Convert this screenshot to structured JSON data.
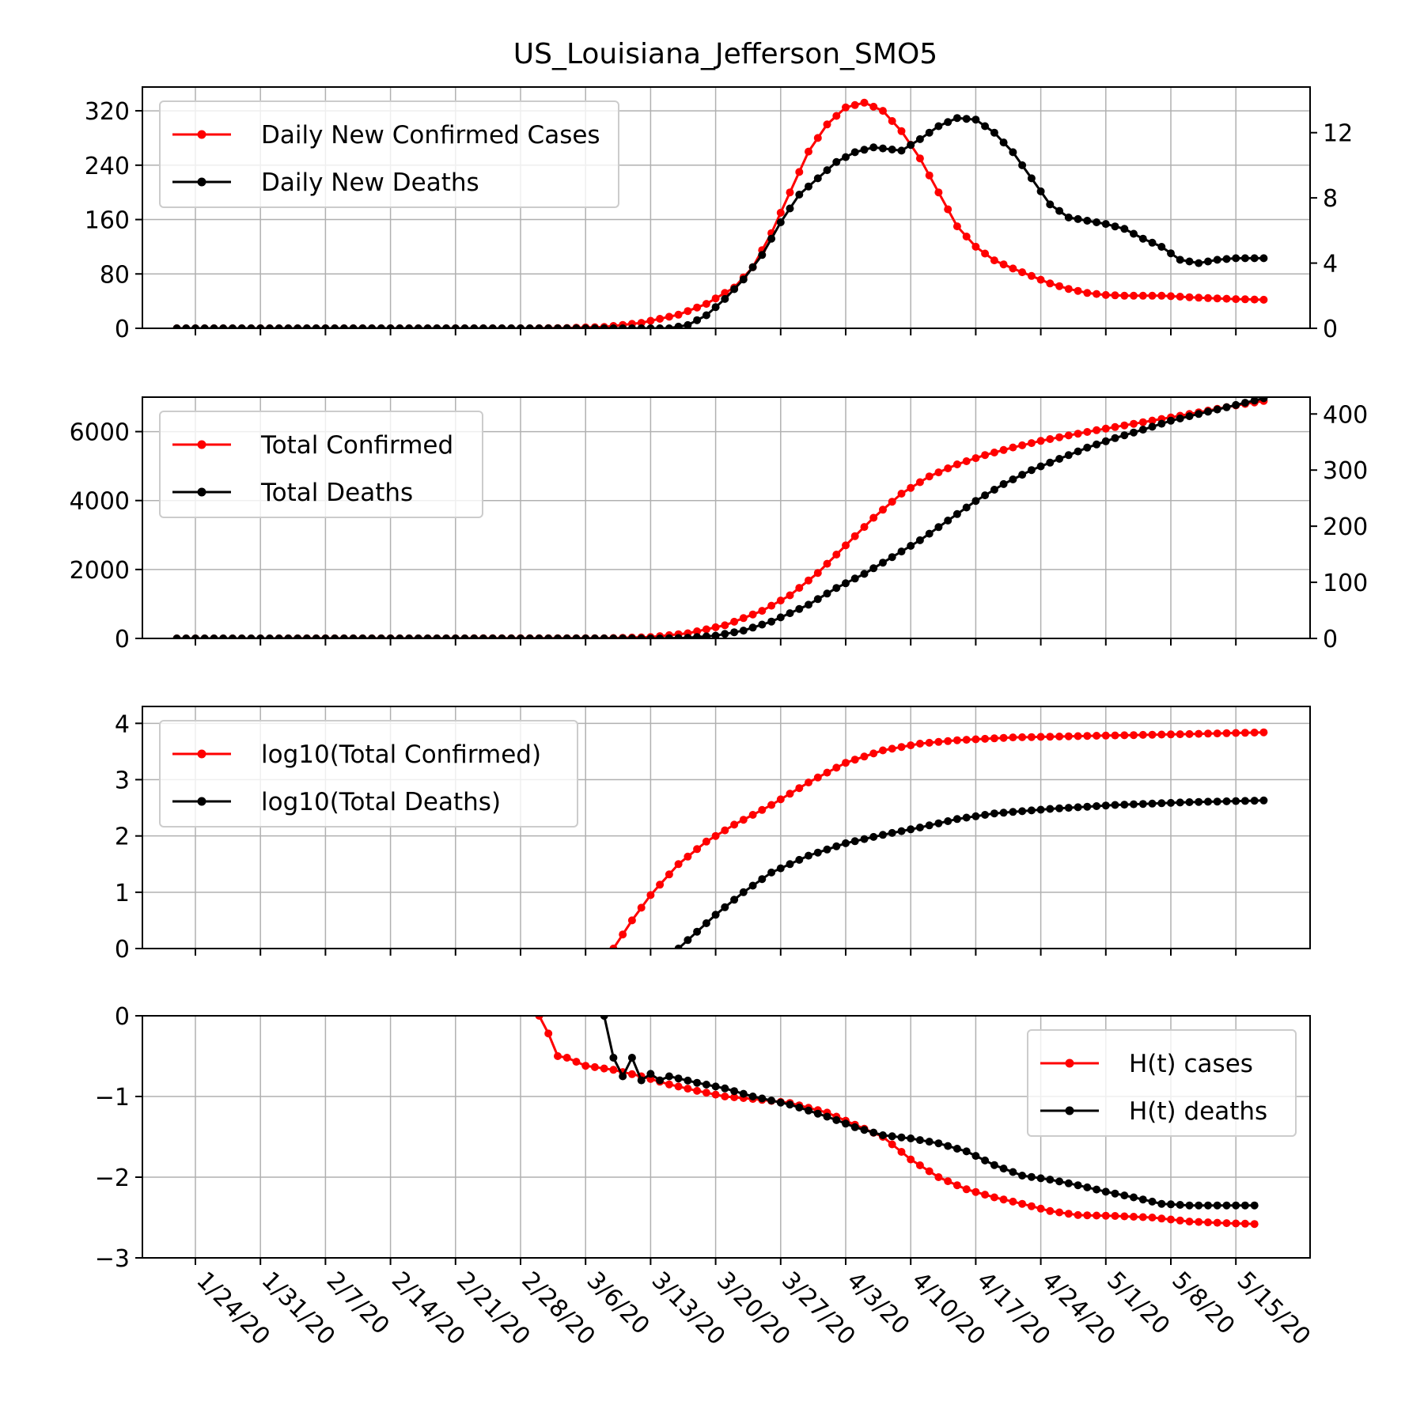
{
  "title": "US_Louisiana_Jefferson_SMO5",
  "colors": {
    "cases": "#ff0000",
    "deaths": "#000000",
    "grid": "#b0b0b0"
  },
  "chart_data": [
    {
      "type": "line",
      "title": "US_Louisiana_Jefferson_SMO5",
      "x_start": "1/22/20",
      "x_end": "5/18/20",
      "x_tick_labels": [
        "1/24/20",
        "1/31/20",
        "2/7/20",
        "2/14/20",
        "2/21/20",
        "2/28/20",
        "3/6/20",
        "3/13/20",
        "3/20/20",
        "3/27/20",
        "4/3/20",
        "4/10/20",
        "4/17/20",
        "4/24/20",
        "5/1/20",
        "5/8/20",
        "5/15/20"
      ],
      "grid": true,
      "legend_position": "upper-left",
      "y_left": {
        "ylim": [
          0,
          355
        ],
        "ticks": [
          0,
          80,
          160,
          240,
          320
        ]
      },
      "y_right": {
        "ylim": [
          0,
          14.8
        ],
        "ticks": [
          0,
          4,
          8,
          12
        ]
      },
      "series": [
        {
          "name": "Daily New Confirmed Cases",
          "axis": "left",
          "color": "#ff0000",
          "points": [
            [
              "1/22/20",
              0
            ],
            [
              "2/29/20",
              0
            ],
            [
              "3/4/20",
              0.5
            ],
            [
              "3/8/20",
              2
            ],
            [
              "3/12/20",
              8
            ],
            [
              "3/16/20",
              20
            ],
            [
              "3/19/20",
              36
            ],
            [
              "3/22/20",
              60
            ],
            [
              "3/24/20",
              90
            ],
            [
              "3/26/20",
              140
            ],
            [
              "3/28/20",
              200
            ],
            [
              "3/30/20",
              260
            ],
            [
              "4/1/20",
              300
            ],
            [
              "4/3/20",
              325
            ],
            [
              "4/5/20",
              332
            ],
            [
              "4/7/20",
              320
            ],
            [
              "4/9/20",
              290
            ],
            [
              "4/11/20",
              250
            ],
            [
              "4/13/20",
              200
            ],
            [
              "4/15/20",
              150
            ],
            [
              "4/17/20",
              120
            ],
            [
              "4/19/20",
              100
            ],
            [
              "4/21/20",
              88
            ],
            [
              "4/23/20",
              77
            ],
            [
              "4/25/20",
              66
            ],
            [
              "4/27/20",
              58
            ],
            [
              "4/29/20",
              52
            ],
            [
              "5/1/20",
              49
            ],
            [
              "5/3/20",
              48
            ],
            [
              "5/7/20",
              48
            ],
            [
              "5/11/20",
              45
            ],
            [
              "5/15/20",
              43
            ],
            [
              "5/18/20",
              42
            ]
          ]
        },
        {
          "name": "Daily New Deaths",
          "axis": "right",
          "color": "#000000",
          "points": [
            [
              "1/22/20",
              0
            ],
            [
              "3/15/20",
              0
            ],
            [
              "3/17/20",
              0.2
            ],
            [
              "3/19/20",
              0.8
            ],
            [
              "3/21/20",
              1.8
            ],
            [
              "3/23/20",
              3
            ],
            [
              "3/25/20",
              4.5
            ],
            [
              "3/27/20",
              6.5
            ],
            [
              "3/29/20",
              8.2
            ],
            [
              "3/31/20",
              9.2
            ],
            [
              "4/2/20",
              10.2
            ],
            [
              "4/4/20",
              10.8
            ],
            [
              "4/6/20",
              11.1
            ],
            [
              "4/9/20",
              10.9
            ],
            [
              "4/11/20",
              11.6
            ],
            [
              "4/13/20",
              12.4
            ],
            [
              "4/15/20",
              12.9
            ],
            [
              "4/17/20",
              12.8
            ],
            [
              "4/19/20",
              12
            ],
            [
              "4/21/20",
              10.8
            ],
            [
              "4/23/20",
              9.2
            ],
            [
              "4/25/20",
              7.6
            ],
            [
              "4/27/20",
              6.8
            ],
            [
              "4/29/20",
              6.6
            ],
            [
              "5/1/20",
              6.4
            ],
            [
              "5/3/20",
              6.1
            ],
            [
              "5/5/20",
              5.5
            ],
            [
              "5/7/20",
              5
            ],
            [
              "5/9/20",
              4.2
            ],
            [
              "5/11/20",
              4
            ],
            [
              "5/13/20",
              4.2
            ],
            [
              "5/15/20",
              4.3
            ],
            [
              "5/18/20",
              4.3
            ]
          ]
        }
      ]
    },
    {
      "type": "line",
      "x_start": "1/22/20",
      "x_end": "5/18/20",
      "grid": true,
      "legend_position": "upper-left",
      "y_left": {
        "ylim": [
          0,
          7000
        ],
        "ticks": [
          0,
          2000,
          4000,
          6000
        ]
      },
      "y_right": {
        "ylim": [
          0,
          430
        ],
        "ticks": [
          0,
          100,
          200,
          300,
          400
        ]
      },
      "series": [
        {
          "name": "Total Confirmed",
          "axis": "left",
          "color": "#ff0000",
          "points": [
            [
              "1/22/20",
              0
            ],
            [
              "3/8/20",
              5
            ],
            [
              "3/13/20",
              40
            ],
            [
              "3/17/20",
              150
            ],
            [
              "3/21/20",
              380
            ],
            [
              "3/25/20",
              800
            ],
            [
              "3/28/20",
              1250
            ],
            [
              "3/31/20",
              1900
            ],
            [
              "4/3/20",
              2700
            ],
            [
              "4/6/20",
              3500
            ],
            [
              "4/9/20",
              4200
            ],
            [
              "4/12/20",
              4700
            ],
            [
              "4/15/20",
              5050
            ],
            [
              "4/18/20",
              5320
            ],
            [
              "4/21/20",
              5540
            ],
            [
              "4/24/20",
              5730
            ],
            [
              "4/27/20",
              5890
            ],
            [
              "4/30/20",
              6040
            ],
            [
              "5/3/20",
              6180
            ],
            [
              "5/6/20",
              6320
            ],
            [
              "5/9/20",
              6460
            ],
            [
              "5/12/20",
              6610
            ],
            [
              "5/15/20",
              6760
            ],
            [
              "5/18/20",
              6890
            ]
          ]
        },
        {
          "name": "Total Deaths",
          "axis": "right",
          "color": "#000000",
          "points": [
            [
              "1/22/20",
              0
            ],
            [
              "3/14/20",
              0
            ],
            [
              "3/17/20",
              1
            ],
            [
              "3/20/20",
              5
            ],
            [
              "3/23/20",
              14
            ],
            [
              "3/26/20",
              30
            ],
            [
              "3/30/20",
              60
            ],
            [
              "4/2/20",
              90
            ],
            [
              "4/5/20",
              115
            ],
            [
              "4/8/20",
              145
            ],
            [
              "4/11/20",
              175
            ],
            [
              "4/14/20",
              210
            ],
            [
              "4/17/20",
              245
            ],
            [
              "4/20/20",
              275
            ],
            [
              "4/23/20",
              300
            ],
            [
              "4/26/20",
              320
            ],
            [
              "4/29/20",
              340
            ],
            [
              "5/2/20",
              357
            ],
            [
              "5/5/20",
              372
            ],
            [
              "5/8/20",
              388
            ],
            [
              "5/11/20",
              400
            ],
            [
              "5/14/20",
              412
            ],
            [
              "5/18/20",
              428
            ]
          ]
        }
      ]
    },
    {
      "type": "line",
      "x_start": "1/22/20",
      "x_end": "5/18/20",
      "grid": true,
      "legend_position": "upper-left",
      "y_left": {
        "ylim": [
          0,
          4.3
        ],
        "ticks": [
          0,
          1,
          2,
          3,
          4
        ]
      },
      "series": [
        {
          "name": "log10(Total Confirmed)",
          "axis": "left",
          "color": "#ff0000",
          "points": [
            [
              "3/9/20",
              0
            ],
            [
              "3/11/20",
              0.5
            ],
            [
              "3/13/20",
              0.95
            ],
            [
              "3/16/20",
              1.5
            ],
            [
              "3/19/20",
              1.9
            ],
            [
              "3/22/20",
              2.2
            ],
            [
              "3/26/20",
              2.55
            ],
            [
              "3/30/20",
              2.95
            ],
            [
              "4/3/20",
              3.3
            ],
            [
              "4/7/20",
              3.52
            ],
            [
              "4/11/20",
              3.64
            ],
            [
              "4/15/20",
              3.7
            ],
            [
              "4/21/20",
              3.75
            ],
            [
              "4/30/20",
              3.78
            ],
            [
              "5/10/20",
              3.81
            ],
            [
              "5/18/20",
              3.84
            ]
          ]
        },
        {
          "name": "log10(Total Deaths)",
          "axis": "left",
          "color": "#000000",
          "points": [
            [
              "3/16/20",
              0
            ],
            [
              "3/18/20",
              0.3
            ],
            [
              "3/20/20",
              0.6
            ],
            [
              "3/23/20",
              1.0
            ],
            [
              "3/26/20",
              1.35
            ],
            [
              "3/30/20",
              1.65
            ],
            [
              "4/3/20",
              1.87
            ],
            [
              "4/7/20",
              2.02
            ],
            [
              "4/11/20",
              2.15
            ],
            [
              "4/15/20",
              2.3
            ],
            [
              "4/19/20",
              2.4
            ],
            [
              "4/25/20",
              2.48
            ],
            [
              "5/2/20",
              2.55
            ],
            [
              "5/10/20",
              2.6
            ],
            [
              "5/18/20",
              2.63
            ]
          ]
        }
      ]
    },
    {
      "type": "line",
      "x_start": "1/22/20",
      "x_end": "5/18/20",
      "grid": true,
      "legend_position": "upper-right",
      "y_left": {
        "ylim": [
          -3,
          0
        ],
        "ticks": [
          0,
          -1,
          -2,
          -3
        ]
      },
      "series": [
        {
          "name": "H(t) cases",
          "axis": "left",
          "color": "#ff0000",
          "points": [
            [
              "3/1/20",
              0
            ],
            [
              "3/2/20",
              -0.22
            ],
            [
              "3/3/20",
              -0.5
            ],
            [
              "3/4/20",
              -0.52
            ],
            [
              "3/6/20",
              -0.62
            ],
            [
              "3/9/20",
              -0.67
            ],
            [
              "3/12/20",
              -0.75
            ],
            [
              "3/15/20",
              -0.85
            ],
            [
              "3/18/20",
              -0.93
            ],
            [
              "3/21/20",
              -1.0
            ],
            [
              "3/24/20",
              -1.03
            ],
            [
              "3/28/20",
              -1.08
            ],
            [
              "4/1/20",
              -1.2
            ],
            [
              "4/4/20",
              -1.35
            ],
            [
              "4/7/20",
              -1.5
            ],
            [
              "4/10/20",
              -1.78
            ],
            [
              "4/13/20",
              -2.0
            ],
            [
              "4/16/20",
              -2.15
            ],
            [
              "4/19/20",
              -2.25
            ],
            [
              "4/22/20",
              -2.33
            ],
            [
              "4/25/20",
              -2.42
            ],
            [
              "4/28/20",
              -2.47
            ],
            [
              "5/2/20",
              -2.48
            ],
            [
              "5/6/20",
              -2.5
            ],
            [
              "5/10/20",
              -2.55
            ],
            [
              "5/14/20",
              -2.57
            ],
            [
              "5/17/20",
              -2.58
            ]
          ]
        },
        {
          "name": "H(t) deaths",
          "axis": "left",
          "color": "#000000",
          "points": [
            [
              "3/8/20",
              0
            ],
            [
              "3/9/20",
              -0.52
            ],
            [
              "3/10/20",
              -0.75
            ],
            [
              "3/11/20",
              -0.52
            ],
            [
              "3/12/20",
              -0.8
            ],
            [
              "3/13/20",
              -0.72
            ],
            [
              "3/14/20",
              -0.8
            ],
            [
              "3/15/20",
              -0.75
            ],
            [
              "3/18/20",
              -0.83
            ],
            [
              "3/21/20",
              -0.9
            ],
            [
              "3/24/20",
              -1.0
            ],
            [
              "3/28/20",
              -1.1
            ],
            [
              "4/1/20",
              -1.25
            ],
            [
              "4/4/20",
              -1.38
            ],
            [
              "4/7/20",
              -1.48
            ],
            [
              "4/10/20",
              -1.52
            ],
            [
              "4/13/20",
              -1.58
            ],
            [
              "4/16/20",
              -1.68
            ],
            [
              "4/19/20",
              -1.85
            ],
            [
              "4/22/20",
              -1.98
            ],
            [
              "4/25/20",
              -2.03
            ],
            [
              "4/28/20",
              -2.1
            ],
            [
              "5/1/20",
              -2.18
            ],
            [
              "5/4/20",
              -2.25
            ],
            [
              "5/7/20",
              -2.33
            ],
            [
              "5/10/20",
              -2.35
            ],
            [
              "5/14/20",
              -2.35
            ],
            [
              "5/17/20",
              -2.35
            ]
          ]
        }
      ]
    }
  ]
}
